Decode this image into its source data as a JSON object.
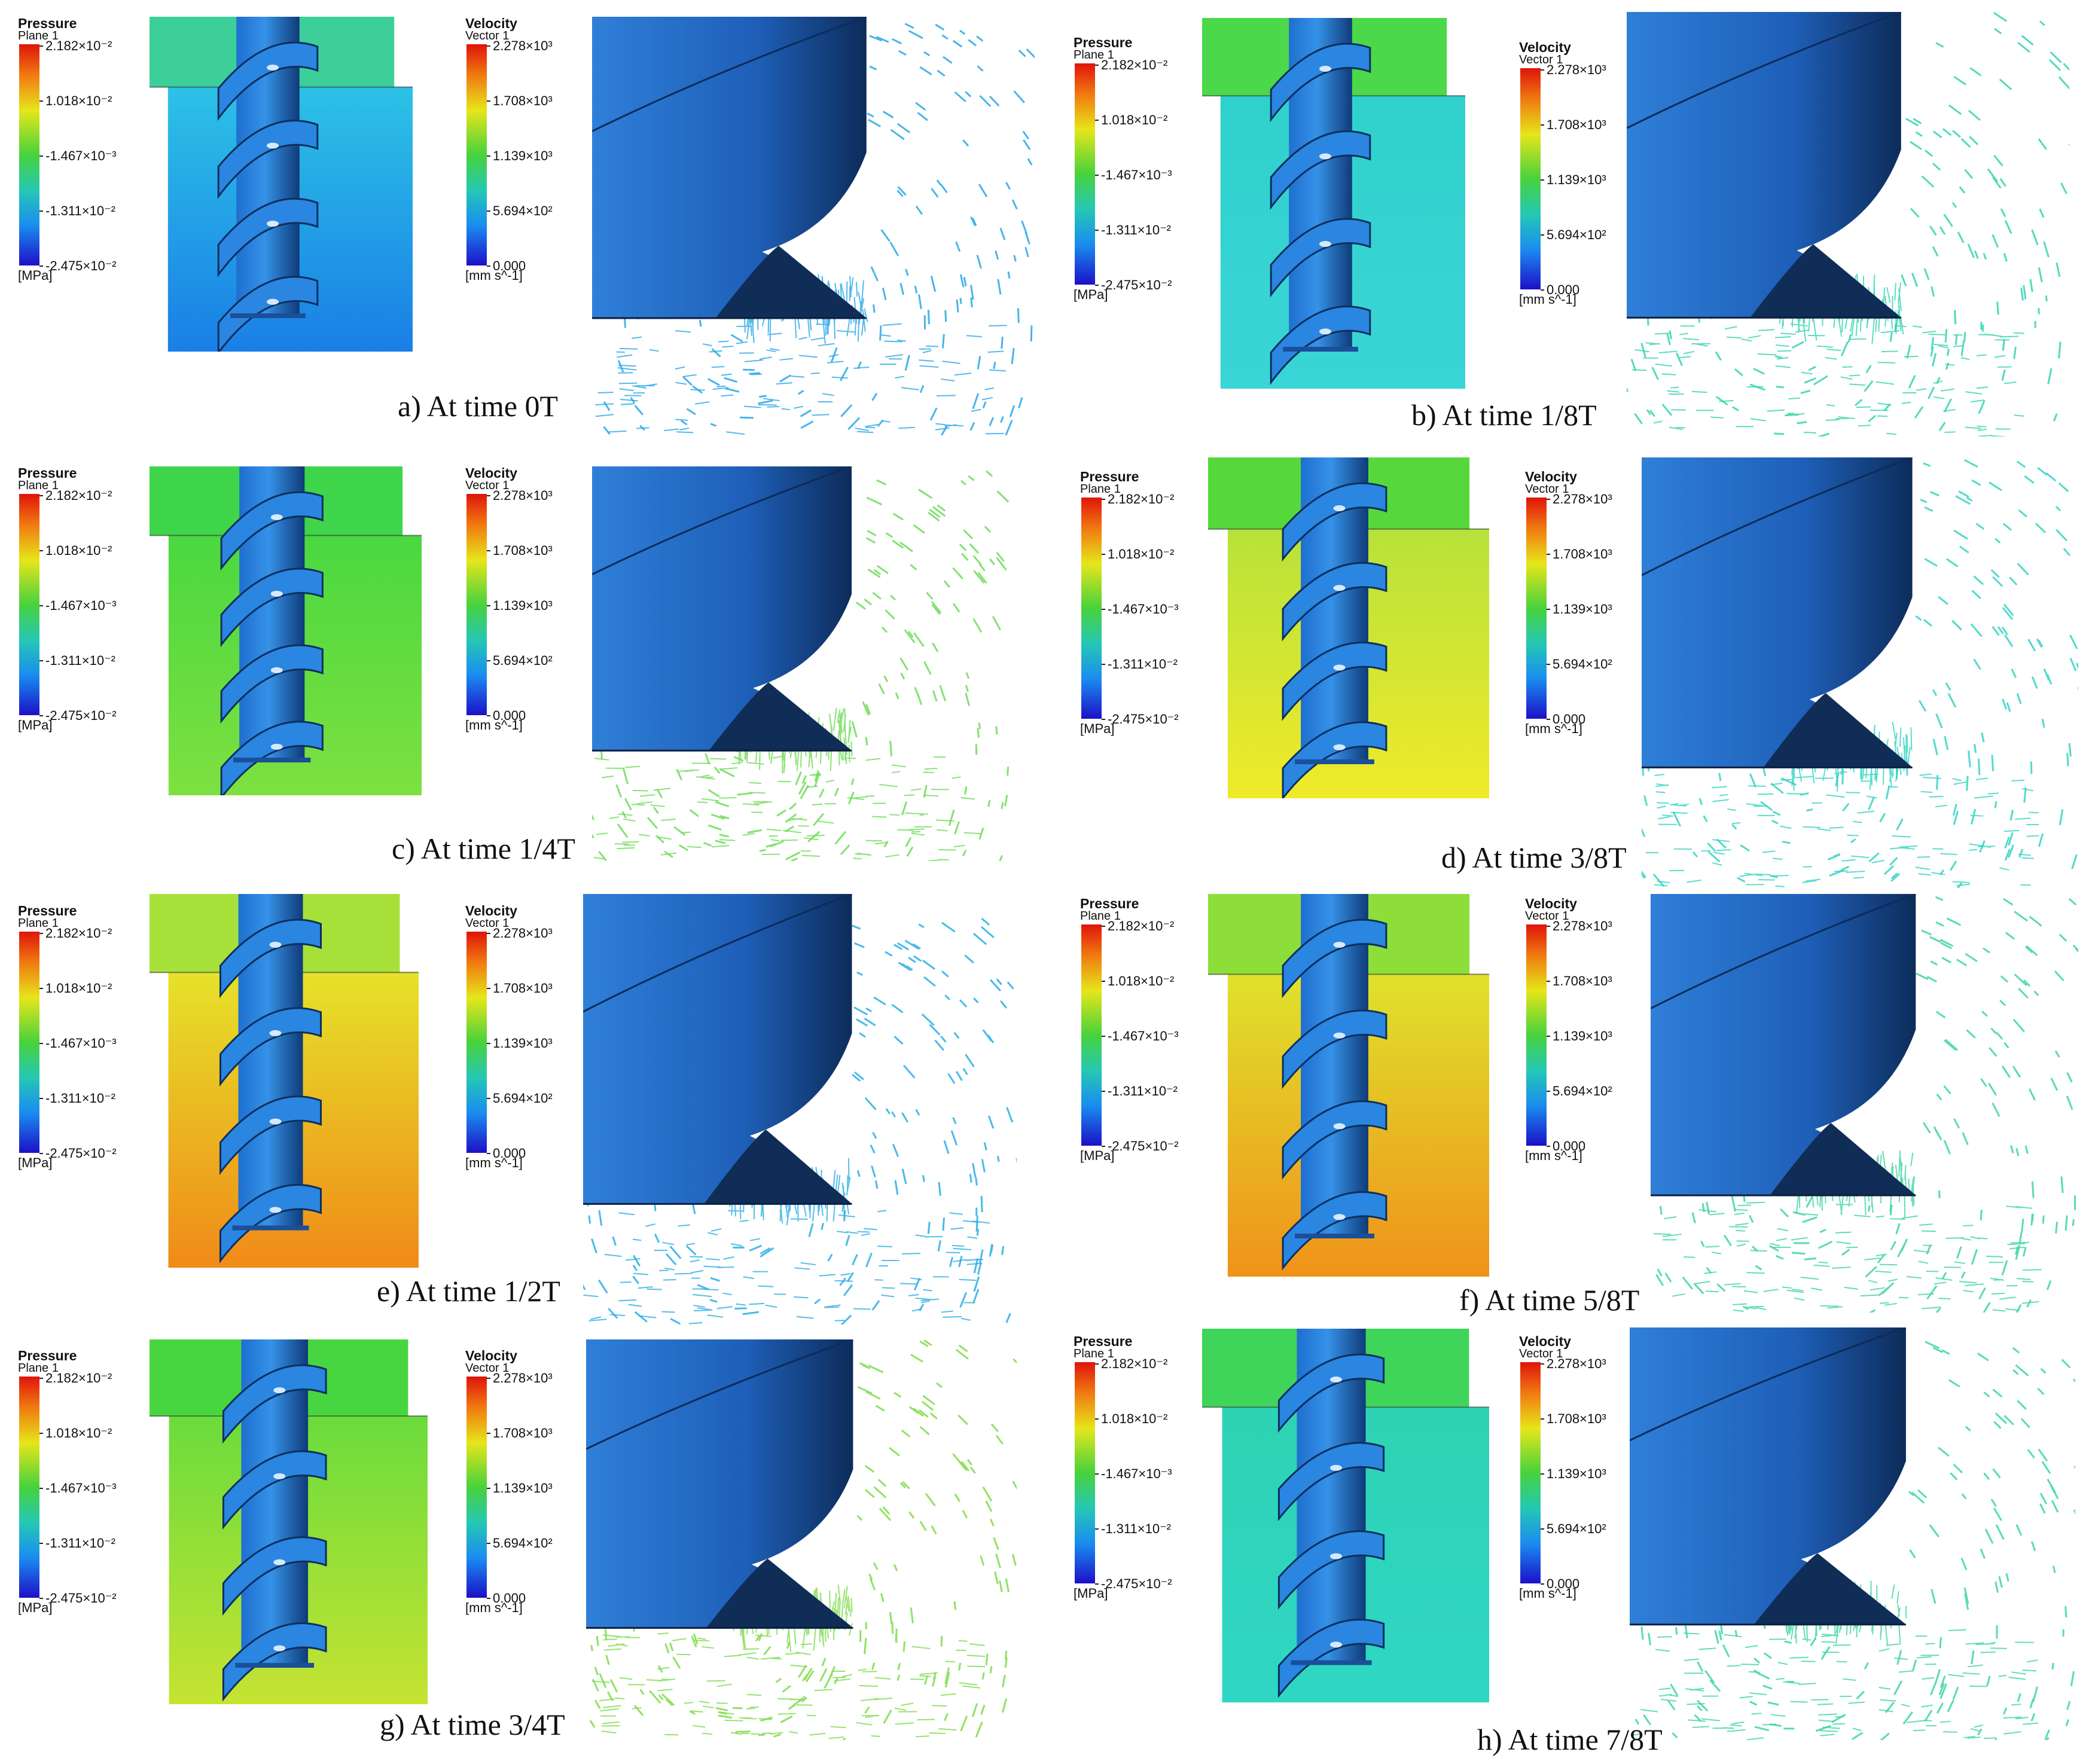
{
  "pressure_legend": {
    "title": "Pressure",
    "subtitle": "Plane 1",
    "ticks": [
      "2.182×10⁻²",
      "1.018×10⁻²",
      "-1.467×10⁻³",
      "-1.311×10⁻²",
      "-2.475×10⁻²"
    ],
    "unit": "[MPa]"
  },
  "velocity_legend": {
    "title": "Velocity",
    "subtitle": "Vector 1",
    "ticks": [
      "2.278×10³",
      "1.708×10³",
      "1.139×10³",
      "5.694×10²",
      "0.000"
    ],
    "unit": "[mm s^-1]"
  },
  "colors": {
    "screw_body": "#2e7fd6",
    "screw_dark": "#123a6a",
    "scale_max": "#e0140a",
    "scale_min": "#1c10c8"
  },
  "panels": [
    {
      "caption": "a) At time 0T",
      "top_color": "#3ccf9a",
      "bottom_color": "#2cc2e6",
      "bottom_end": "#1a7fe6",
      "vec_color": "#2aa8e8"
    },
    {
      "caption": "b)   At time 1/8T",
      "top_color": "#4bd84a",
      "bottom_color": "#2fd1cc",
      "bottom_end": "#3ad5d6",
      "vec_color": "#36d4b0"
    },
    {
      "caption": "c) At time 1/4T",
      "top_color": "#3ed54a",
      "bottom_color": "#4ad840",
      "bottom_end": "#7ee040",
      "vec_color": "#6fdc5a"
    },
    {
      "caption": "d) At time 3/8T",
      "top_color": "#56d83c",
      "bottom_color": "#b7e23a",
      "bottom_end": "#f0ea2a",
      "vec_color": "#34d4c4"
    },
    {
      "caption": "e) At time 1/2T",
      "top_color": "#a8e03a",
      "bottom_color": "#e6e22a",
      "bottom_end": "#f08a18",
      "vec_color": "#2aaee6"
    },
    {
      "caption": "f) At time 5/8T",
      "top_color": "#8ede3a",
      "bottom_color": "#dfe22c",
      "bottom_end": "#f0921a",
      "vec_color": "#3ed69c"
    },
    {
      "caption": "g) At time 3/4T",
      "top_color": "#48d640",
      "bottom_color": "#6adc3c",
      "bottom_end": "#c6e332",
      "vec_color": "#7edc4a"
    },
    {
      "caption": "h) At time 7/8T",
      "top_color": "#3fd45a",
      "bottom_color": "#2ed3b4",
      "bottom_end": "#2fd6c4",
      "vec_color": "#3cd6a4"
    }
  ]
}
